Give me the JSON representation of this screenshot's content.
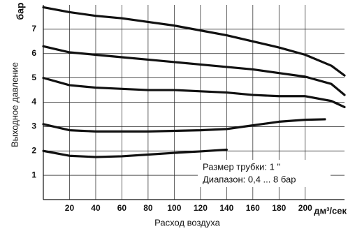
{
  "chart_data": {
    "type": "line",
    "xlabel": "Расход воздуха",
    "xunit": "дм³/сек",
    "ylabel": "Выходное давление",
    "yunit": "бар",
    "annotations": [
      "Размер трубки: 1 \"",
      "Диапазон: 0,4 ... 8 бар"
    ],
    "xlim": [
      0,
      230
    ],
    "ylim": [
      0,
      8
    ],
    "xticks": [
      20,
      40,
      60,
      80,
      100,
      120,
      140,
      160,
      180,
      200
    ],
    "yticks": [
      1,
      2,
      3,
      4,
      5,
      6,
      7
    ],
    "grid": true,
    "series": [
      {
        "color": "#111111",
        "x": [
          0,
          20,
          40,
          60,
          80,
          100,
          120,
          140,
          160,
          180,
          200,
          220,
          230
        ],
        "values": [
          7.9,
          7.7,
          7.55,
          7.45,
          7.3,
          7.15,
          6.95,
          6.75,
          6.5,
          6.25,
          5.95,
          5.5,
          5.1
        ]
      },
      {
        "color": "#111111",
        "x": [
          0,
          20,
          40,
          60,
          80,
          100,
          120,
          140,
          160,
          180,
          200,
          220,
          230
        ],
        "values": [
          6.3,
          6.05,
          5.95,
          5.85,
          5.75,
          5.65,
          5.55,
          5.45,
          5.35,
          5.2,
          5.05,
          4.75,
          4.3
        ]
      },
      {
        "color": "#111111",
        "x": [
          0,
          20,
          40,
          60,
          80,
          100,
          120,
          140,
          160,
          180,
          200,
          220,
          230
        ],
        "values": [
          5.0,
          4.7,
          4.6,
          4.55,
          4.5,
          4.5,
          4.45,
          4.4,
          4.3,
          4.25,
          4.25,
          4.05,
          3.8
        ]
      },
      {
        "color": "#111111",
        "x": [
          0,
          20,
          40,
          80,
          120,
          140,
          160,
          180,
          200,
          215
        ],
        "values": [
          3.1,
          2.85,
          2.8,
          2.8,
          2.85,
          2.9,
          3.05,
          3.2,
          3.28,
          3.3
        ]
      },
      {
        "color": "#111111",
        "x": [
          0,
          20,
          40,
          60,
          80,
          100,
          120,
          140
        ],
        "values": [
          2.0,
          1.8,
          1.75,
          1.78,
          1.85,
          1.92,
          1.98,
          2.05
        ]
      }
    ]
  }
}
